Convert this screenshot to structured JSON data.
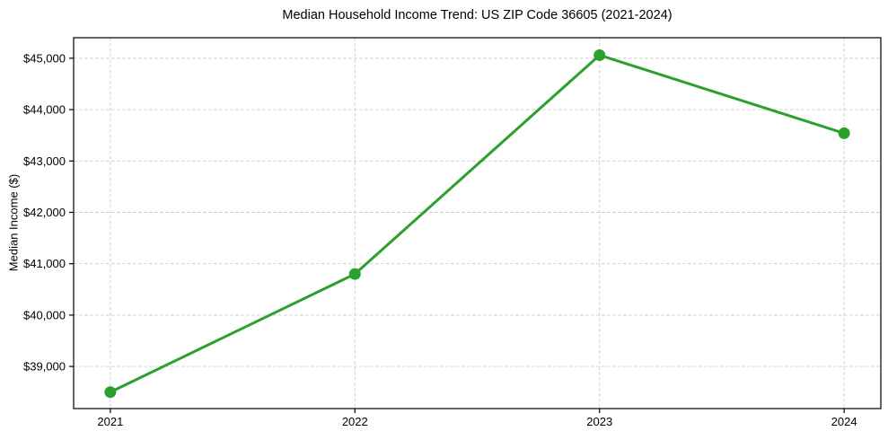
{
  "chart_data": {
    "type": "line",
    "title": "Median Household Income Trend: US ZIP Code 36605 (2021-2024)",
    "xlabel": "",
    "ylabel": "Median Income ($)",
    "x": [
      2021,
      2022,
      2023,
      2024
    ],
    "x_tick_labels": [
      "2021",
      "2022",
      "2023",
      "2024"
    ],
    "series": [
      {
        "name": "Median Household Income",
        "values": [
          38500,
          40800,
          45060,
          43540
        ]
      }
    ],
    "y_tick_values": [
      39000,
      40000,
      41000,
      42000,
      43000,
      44000,
      45000
    ],
    "y_tick_labels": [
      "$39,000",
      "$40,000",
      "$41,000",
      "$42,000",
      "$43,000",
      "$44,000",
      "$45,000"
    ],
    "xlim": [
      2020.85,
      2024.15
    ],
    "ylim": [
      38180,
      45400
    ],
    "grid": true,
    "grid_style": "dashed",
    "legend": "none",
    "style": {
      "line_color": "#2ca02c",
      "marker": "circle",
      "marker_radius": 6.5,
      "line_width": 3,
      "grid_color": "#cccccc",
      "spine_color": "#000000",
      "tick_color": "#000000",
      "background": "#ffffff"
    }
  }
}
